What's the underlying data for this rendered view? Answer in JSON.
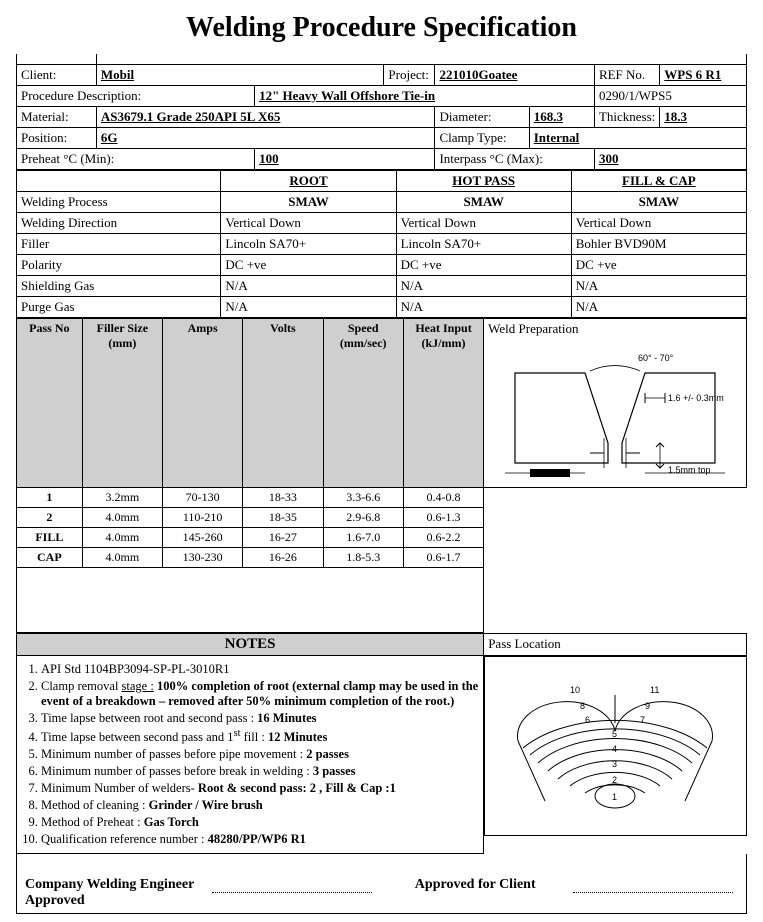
{
  "title": "Welding Procedure Specification",
  "header": {
    "client_label": "Client:",
    "client": "Mobil",
    "project_label": "Project:",
    "project": "221010Goatee",
    "refno_label": "REF No.",
    "refno": "WPS 6 R1",
    "procdesc_label": "Procedure Description:",
    "procdesc": "12\" Heavy Wall Offshore Tie-in",
    "doccode": "0290/1/WPS5",
    "material_label": "Material:",
    "material": "AS3679.1 Grade 250API 5L X65",
    "diameter_label": "Diameter:",
    "diameter": "168.3",
    "thickness_label": "Thickness:",
    "thickness": "18.3",
    "position_label": "Position:",
    "position": "6G",
    "clamptype_label": "Clamp Type:",
    "clamptype": "Internal",
    "preheat_label": "Preheat °C (Min):",
    "preheat": "100",
    "interpass_label": "Interpass °C (Max):",
    "interpass": "300"
  },
  "proc": {
    "cols": {
      "root": "ROOT",
      "hot": "HOT PASS",
      "fill": "FILL & CAP"
    },
    "process_label": "Welding Process",
    "process": {
      "root": "SMAW",
      "hot": "SMAW",
      "fill": "SMAW"
    },
    "direction_label": "Welding Direction",
    "direction": {
      "root": "Vertical Down",
      "hot": "Vertical Down",
      "fill": "Vertical Down"
    },
    "filler_label": "Filler",
    "filler": {
      "root": "Lincoln SA70+",
      "hot": "Lincoln SA70+",
      "fill": "Bohler BVD90M"
    },
    "polarity_label": "Polarity",
    "polarity": {
      "root": "DC +ve",
      "hot": "DC +ve",
      "fill": "DC +ve"
    },
    "shield_label": "Shielding Gas",
    "shield": {
      "root": "N/A",
      "hot": "N/A",
      "fill": "N/A"
    },
    "purge_label": "Purge Gas",
    "purge": {
      "root": "N/A",
      "hot": "N/A",
      "fill": "N/A"
    }
  },
  "params": {
    "headers": {
      "passno": "Pass No",
      "fsize": "Filler Size (mm)",
      "amps": "Amps",
      "volts": "Volts",
      "speed": "Speed (mm/sec)",
      "heat": "Heat Input (kJ/mm)"
    },
    "rows": [
      {
        "passno": "1",
        "fsize": "3.2mm",
        "amps": "70-130",
        "volts": "18-33",
        "speed": "3.3-6.6",
        "heat": "0.4-0.8"
      },
      {
        "passno": "2",
        "fsize": "4.0mm",
        "amps": "110-210",
        "volts": "18-35",
        "speed": "2.9-6.8",
        "heat": "0.6-1.3"
      },
      {
        "passno": "FILL",
        "fsize": "4.0mm",
        "amps": "145-260",
        "volts": "16-27",
        "speed": "1.6-7.0",
        "heat": "0.6-2.2"
      },
      {
        "passno": "CAP",
        "fsize": "4.0mm",
        "amps": "130-230",
        "volts": "16-26",
        "speed": "1.8-5.3",
        "heat": "0.6-1.7"
      }
    ]
  },
  "weldprep": {
    "title": "Weld Preparation",
    "angle": "60° - 70°",
    "rootface": "1.6 +/- 0.3mm",
    "landnote": "1.5mm top"
  },
  "notes": {
    "title": "NOTES",
    "items": [
      "API Std 1104BP3094-SP-PL-3010R1",
      "Clamp removal <u>stage :</u> <b>100% completion of root (external clamp may be used in the event of a breakdown – removed after 50% minimum completion of the root.)</b>",
      "Time lapse between root and second pass : <b>16 Minutes</b>",
      "Time lapse between second pass and 1<sup>st</sup> fill : <b>12 Minutes</b>",
      "Minimum number of passes before pipe movement : <b>2 passes</b>",
      "Minimum number of passes before break in welding : <b>3 passes</b>",
      "Minimum Number of welders- <b>Root & second pass: 2 , Fill & Cap :1</b>",
      "Method of cleaning : <b>Grinder / Wire brush</b>",
      "Method of Preheat : <b>Gas Torch</b>",
      "Qualification reference number : <b>48280/PP/WP6 R1</b>"
    ]
  },
  "passloc": {
    "title": "Pass Location"
  },
  "sign": {
    "left": "Company Welding Engineer Approved",
    "right": "Approved for Client"
  }
}
